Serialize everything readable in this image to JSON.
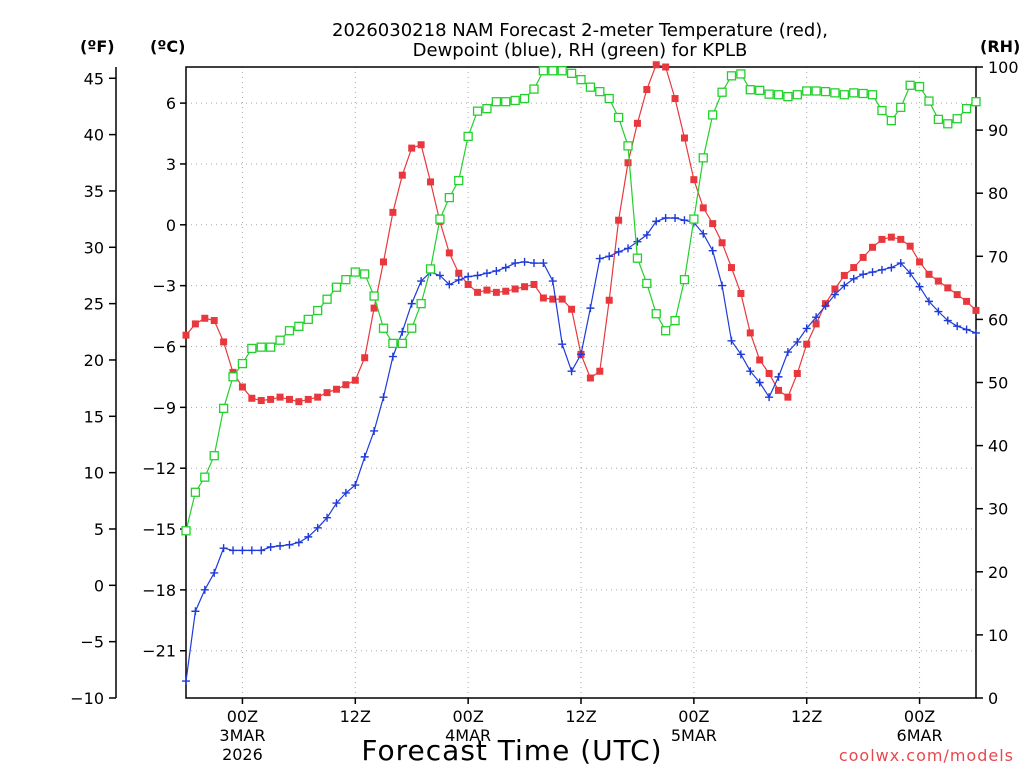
{
  "chart_data": {
    "type": "line",
    "title": [
      "2026030218 NAM Forecast 2-meter Temperature (red),",
      "Dewpoint (blue), RH (green) for KPLB"
    ],
    "xlabel": "Forecast Time (UTC)",
    "credit": "coolwx.com/models",
    "units": {
      "fahrenheit": "(ºF)",
      "celsius": "(ºC)",
      "rh": "(RH)"
    },
    "x_hours_range": [
      0,
      84
    ],
    "x_ticks": [
      {
        "hour": 6,
        "label": "00Z",
        "date": "3MAR",
        "year": "2026"
      },
      {
        "hour": 18,
        "label": "12Z",
        "date": "",
        "year": ""
      },
      {
        "hour": 30,
        "label": "00Z",
        "date": "4MAR",
        "year": ""
      },
      {
        "hour": 42,
        "label": "12Z",
        "date": "",
        "year": ""
      },
      {
        "hour": 54,
        "label": "00Z",
        "date": "5MAR",
        "year": ""
      },
      {
        "hour": 66,
        "label": "12Z",
        "date": "",
        "year": ""
      },
      {
        "hour": 78,
        "label": "00Z",
        "date": "6MAR",
        "year": ""
      }
    ],
    "fahrenheit_axis": {
      "range": [
        -10,
        46
      ],
      "ticks": [
        -10,
        -5,
        0,
        5,
        10,
        15,
        20,
        25,
        30,
        35,
        40,
        45
      ]
    },
    "celsius_axis": {
      "range": [
        -23.33,
        7.78
      ],
      "ticks": [
        6,
        3,
        0,
        -3,
        -6,
        -9,
        -12,
        -15,
        -18,
        -21
      ],
      "tick_labels": [
        "6",
        "3",
        "0",
        "−3",
        "−6",
        "−9",
        "−12",
        "−15",
        "−18",
        "−21"
      ]
    },
    "rh_axis": {
      "range": [
        0,
        100
      ],
      "ticks": [
        0,
        10,
        20,
        30,
        40,
        50,
        60,
        70,
        80,
        90,
        100
      ]
    },
    "series": [
      {
        "name": "Temperature",
        "units": "F",
        "color": "#e8383d",
        "marker": "filled-square",
        "x": [
          0,
          1,
          2,
          3,
          4,
          5,
          6,
          7,
          8,
          9,
          10,
          11,
          12,
          13,
          14,
          15,
          16,
          17,
          18,
          19,
          20,
          21,
          22,
          23,
          24,
          25,
          26,
          27,
          28,
          29,
          30,
          31,
          32,
          33,
          34,
          35,
          36,
          37,
          38,
          39,
          40,
          41,
          42,
          43,
          44,
          45,
          46,
          47,
          48,
          49,
          50,
          51,
          52,
          53,
          54,
          55,
          56,
          57,
          58,
          59,
          60,
          61,
          62,
          63,
          64,
          65,
          66,
          67,
          68,
          69,
          70,
          71,
          72,
          73,
          74,
          75,
          76,
          77,
          78,
          79,
          80,
          81,
          82,
          83,
          84
        ],
        "values": [
          22.2,
          23.2,
          23.7,
          23.5,
          21.6,
          18.9,
          17.6,
          16.6,
          16.4,
          16.5,
          16.7,
          16.5,
          16.3,
          16.5,
          16.7,
          17.1,
          17.4,
          17.8,
          18.2,
          20.2,
          24.6,
          28.7,
          33.1,
          36.4,
          38.8,
          39.1,
          35.8,
          32.3,
          29.5,
          27.7,
          26.7,
          26.0,
          26.2,
          26.0,
          26.1,
          26.3,
          26.5,
          26.7,
          25.5,
          25.4,
          25.4,
          24.5,
          20.5,
          18.4,
          19.0,
          25.3,
          32.4,
          37.5,
          41.0,
          44.0,
          46.2,
          46.0,
          43.2,
          39.7,
          36.0,
          33.5,
          32.1,
          30.4,
          28.2,
          25.9,
          22.4,
          20.0,
          18.8,
          17.3,
          16.7,
          18.8,
          21.4,
          23.2,
          25.0,
          26.3,
          27.5,
          28.2,
          29.1,
          30.0,
          30.7,
          30.9,
          30.7,
          30.1,
          28.7,
          27.6,
          27.0,
          26.4,
          25.8,
          25.2,
          24.4
        ]
      },
      {
        "name": "Dewpoint",
        "units": "F",
        "color": "#1e3bd9",
        "marker": "plus",
        "x": [
          0,
          1,
          2,
          3,
          4,
          5,
          6,
          7,
          8,
          9,
          10,
          11,
          12,
          13,
          14,
          15,
          16,
          17,
          18,
          19,
          20,
          21,
          22,
          23,
          24,
          25,
          26,
          27,
          28,
          29,
          30,
          31,
          32,
          33,
          34,
          35,
          36,
          37,
          38,
          39,
          40,
          41,
          42,
          43,
          44,
          45,
          46,
          47,
          48,
          49,
          50,
          51,
          52,
          53,
          54,
          55,
          56,
          57,
          58,
          59,
          60,
          61,
          62,
          63,
          64,
          65,
          66,
          67,
          68,
          69,
          70,
          71,
          72,
          73,
          74,
          75,
          76,
          77,
          78,
          79,
          80,
          81,
          82,
          83,
          84
        ],
        "values": [
          -8.5,
          -2.3,
          -0.4,
          1.1,
          3.3,
          3.1,
          3.1,
          3.1,
          3.1,
          3.4,
          3.5,
          3.6,
          3.8,
          4.3,
          5.1,
          6.0,
          7.3,
          8.2,
          8.9,
          11.4,
          13.7,
          16.7,
          20.3,
          22.5,
          25.0,
          27.0,
          27.8,
          27.5,
          26.7,
          27.1,
          27.4,
          27.5,
          27.7,
          27.9,
          28.2,
          28.6,
          28.7,
          28.6,
          28.6,
          27.0,
          21.4,
          19.0,
          20.5,
          24.6,
          29.0,
          29.2,
          29.6,
          29.9,
          30.5,
          31.1,
          32.3,
          32.6,
          32.6,
          32.4,
          32.2,
          31.2,
          29.7,
          26.6,
          21.7,
          20.5,
          19.0,
          18.0,
          16.7,
          18.5,
          20.7,
          21.6,
          22.8,
          23.8,
          24.8,
          25.8,
          26.6,
          27.2,
          27.6,
          27.8,
          28.0,
          28.2,
          28.6,
          27.7,
          26.5,
          25.2,
          24.3,
          23.5,
          23.0,
          22.7,
          22.4
        ]
      },
      {
        "name": "RH",
        "units": "%",
        "color": "#22d12b",
        "marker": "open-square",
        "x": [
          0,
          1,
          2,
          3,
          4,
          5,
          6,
          7,
          8,
          9,
          10,
          11,
          12,
          13,
          14,
          15,
          16,
          17,
          18,
          19,
          20,
          21,
          22,
          23,
          24,
          25,
          26,
          27,
          28,
          29,
          30,
          31,
          32,
          33,
          34,
          35,
          36,
          37,
          38,
          39,
          40,
          41,
          42,
          43,
          44,
          45,
          46,
          47,
          48,
          49,
          50,
          51,
          52,
          53,
          54,
          55,
          56,
          57,
          58,
          59,
          60,
          61,
          62,
          63,
          64,
          65,
          66,
          67,
          68,
          69,
          70,
          71,
          72,
          73,
          74,
          75,
          76,
          77,
          78,
          79,
          80,
          81,
          82,
          83,
          84
        ],
        "values": [
          26.5,
          32.6,
          35.0,
          38.4,
          45.9,
          50.9,
          53.0,
          55.4,
          55.6,
          55.6,
          56.7,
          58.2,
          58.9,
          60.0,
          61.4,
          63.2,
          65.1,
          66.3,
          67.5,
          67.2,
          63.7,
          58.6,
          56.2,
          56.2,
          58.6,
          62.5,
          68.0,
          75.9,
          79.3,
          82.0,
          89.0,
          93.0,
          93.4,
          94.5,
          94.5,
          94.7,
          95.0,
          96.5,
          99.4,
          99.4,
          99.4,
          99.0,
          98.0,
          96.8,
          96.1,
          95.0,
          92.0,
          87.5,
          69.7,
          65.7,
          60.9,
          58.2,
          59.8,
          66.3,
          75.9,
          85.6,
          92.4,
          96.0,
          98.6,
          98.9,
          96.4,
          96.3,
          95.7,
          95.6,
          95.3,
          95.6,
          96.2,
          96.2,
          96.1,
          95.9,
          95.6,
          95.9,
          95.8,
          95.6,
          93.1,
          91.5,
          93.6,
          97.1,
          96.9,
          94.6,
          91.7,
          91.0,
          91.8,
          93.4,
          94.5
        ]
      }
    ]
  }
}
